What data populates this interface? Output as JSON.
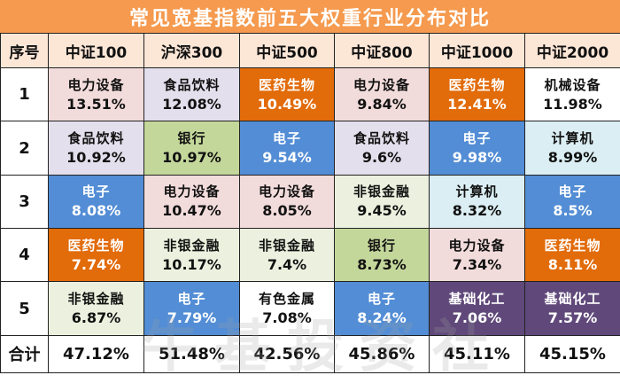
{
  "title": "常见宽基指数前五大权重行业分布对比",
  "header": {
    "index_col": "序号",
    "columns": [
      "中证100",
      "沪深300",
      "中证500",
      "中证800",
      "中证1000",
      "中证2000"
    ]
  },
  "colors": {
    "title_bg": "#f59a4e",
    "header_bg": "#fce6d6",
    "电力设备": "#f2dcdb",
    "食品饮料": "#e4dfec",
    "银行": "#c4d79b",
    "非银金融": "#ebf1de",
    "电子": "#538dd5",
    "医药生物": "#e26b0a",
    "机械设备": "#ffffff",
    "计算机": "#daeef3",
    "有色金属": "#ffffff",
    "基础化工": "#60497a"
  },
  "rows": [
    {
      "rank": "1",
      "cells": [
        {
          "industry": "电力设备",
          "pct": "13.51%"
        },
        {
          "industry": "食品饮料",
          "pct": "12.08%"
        },
        {
          "industry": "医药生物",
          "pct": "10.49%"
        },
        {
          "industry": "电力设备",
          "pct": "9.84%"
        },
        {
          "industry": "医药生物",
          "pct": "12.41%"
        },
        {
          "industry": "机械设备",
          "pct": "11.98%"
        }
      ]
    },
    {
      "rank": "2",
      "cells": [
        {
          "industry": "食品饮料",
          "pct": "10.92%"
        },
        {
          "industry": "银行",
          "pct": "10.97%"
        },
        {
          "industry": "电子",
          "pct": "9.54%"
        },
        {
          "industry": "食品饮料",
          "pct": "9.6%"
        },
        {
          "industry": "电子",
          "pct": "9.98%"
        },
        {
          "industry": "计算机",
          "pct": "8.99%"
        }
      ]
    },
    {
      "rank": "3",
      "cells": [
        {
          "industry": "电子",
          "pct": "8.08%"
        },
        {
          "industry": "电力设备",
          "pct": "10.47%"
        },
        {
          "industry": "电力设备",
          "pct": "8.05%"
        },
        {
          "industry": "非银金融",
          "pct": "9.45%"
        },
        {
          "industry": "计算机",
          "pct": "8.32%"
        },
        {
          "industry": "电子",
          "pct": "8.5%"
        }
      ]
    },
    {
      "rank": "4",
      "cells": [
        {
          "industry": "医药生物",
          "pct": "7.74%"
        },
        {
          "industry": "非银金融",
          "pct": "10.17%"
        },
        {
          "industry": "非银金融",
          "pct": "7.4%"
        },
        {
          "industry": "银行",
          "pct": "8.73%"
        },
        {
          "industry": "电力设备",
          "pct": "7.34%"
        },
        {
          "industry": "医药生物",
          "pct": "8.11%"
        }
      ]
    },
    {
      "rank": "5",
      "cells": [
        {
          "industry": "非银金融",
          "pct": "6.87%"
        },
        {
          "industry": "电子",
          "pct": "7.79%"
        },
        {
          "industry": "有色金属",
          "pct": "7.08%"
        },
        {
          "industry": "电子",
          "pct": "8.24%"
        },
        {
          "industry": "基础化工",
          "pct": "7.06%"
        },
        {
          "industry": "基础化工",
          "pct": "7.57%"
        }
      ]
    }
  ],
  "total": {
    "label": "合计",
    "values": [
      "47.12%",
      "51.48%",
      "42.56%",
      "45.86%",
      "45.11%",
      "45.15%"
    ]
  },
  "watermark": "牛基投资社"
}
